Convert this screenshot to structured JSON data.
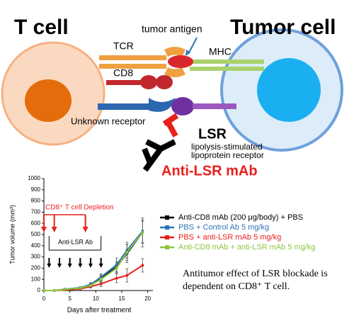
{
  "diagram": {
    "t_cell": "T cell",
    "tumor_cell": "Tumor cell",
    "tumor_antigen": "tumor antigen",
    "tcr": "TCR",
    "mhc": "MHC",
    "cd8": "CD8",
    "unknown_receptor": "Unknown receptor",
    "lsr": "LSR",
    "lsr_full_1": "lipolysis-stimulated",
    "lsr_full_2": "lipoprotein receptor",
    "antibody": "Anti-LSR mAb"
  },
  "chart_data": {
    "type": "line",
    "ylabel": "Tumor volume (mm³)",
    "xlabel": "Days after treatment",
    "x": [
      0,
      2,
      4,
      7,
      9,
      11,
      14,
      16,
      19
    ],
    "series": [
      {
        "name": "Anti-CD8 mAb (200 μg/body) + PBS",
        "color": "#000000",
        "values": [
          0,
          0,
          10,
          25,
          50,
          110,
          210,
          330,
          520
        ],
        "errors": [
          0,
          0,
          5,
          8,
          15,
          30,
          50,
          80,
          130
        ]
      },
      {
        "name": "PBS + Control Ab  5 mg/kg",
        "color": "#2e75b6",
        "values": [
          0,
          0,
          12,
          25,
          55,
          120,
          230,
          360,
          530
        ],
        "errors": [
          0,
          0,
          5,
          8,
          15,
          30,
          60,
          70,
          100
        ]
      },
      {
        "name": "PBS + anti-LSR mAb  5 mg/kg",
        "color": "#e8201c",
        "values": [
          0,
          0,
          5,
          15,
          35,
          60,
          110,
          135,
          225
        ],
        "errors": [
          0,
          0,
          3,
          6,
          12,
          25,
          40,
          60,
          60
        ]
      },
      {
        "name": "Anti-CD8 mAb + anti-LSR mAb  5 mg/kg",
        "color": "#8cc63f",
        "values": [
          0,
          0,
          10,
          22,
          45,
          100,
          200,
          340,
          520
        ],
        "errors": [
          0,
          0,
          5,
          8,
          15,
          30,
          50,
          70,
          100
        ]
      }
    ],
    "xlim": [
      0,
      21
    ],
    "ylim": [
      0,
      1000
    ],
    "xticks": [
      0,
      5,
      10,
      15,
      20
    ],
    "yticks": [
      0,
      100,
      200,
      300,
      400,
      500,
      600,
      700,
      800,
      900,
      1000
    ],
    "depletion_label": "CD8⁺ T cell Depletion",
    "depletion_days": [
      0,
      2,
      8
    ],
    "antibody_label": "Anti-LSR Ab",
    "antibody_days": [
      1,
      3,
      5,
      7,
      9,
      11
    ]
  },
  "caption": "Antitumor effect of LSR blockade is dependent on CD8⁺ T cell."
}
